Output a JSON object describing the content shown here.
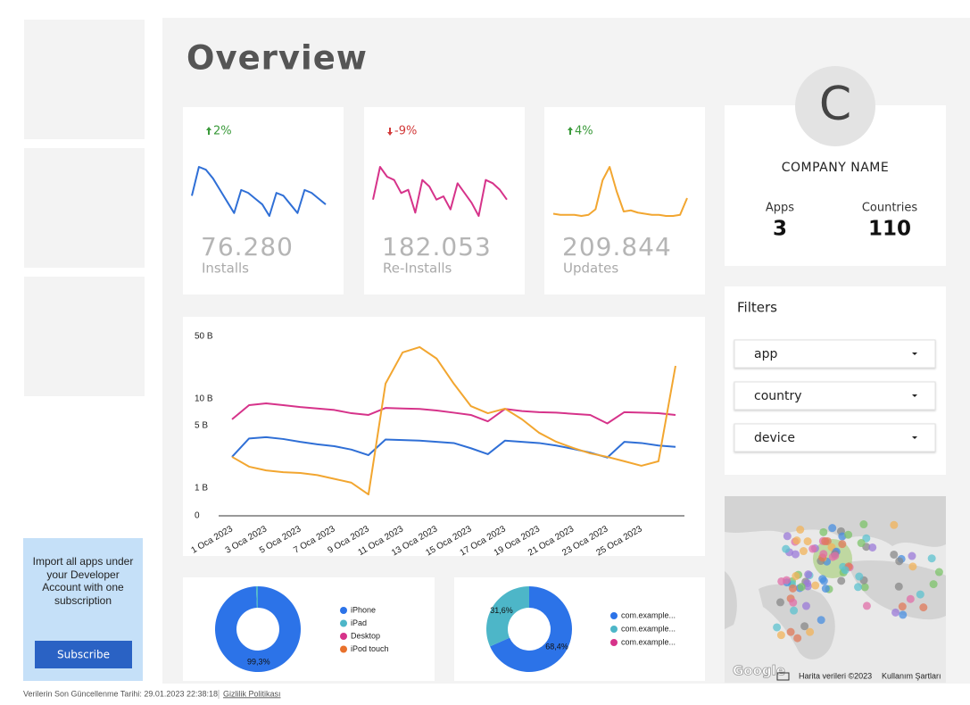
{
  "sidebar": {
    "promo": "Import all apps under your Developer Account with one subscription",
    "button": "Subscribe"
  },
  "header": {
    "title": "Overview"
  },
  "kpis": [
    {
      "change": "2%",
      "direction": "up",
      "value": "76.280",
      "label": "Installs",
      "color": "#2f6fd6",
      "trend": [
        10,
        20,
        19,
        16,
        12,
        8,
        4,
        12,
        11,
        9,
        7,
        3,
        11,
        10,
        7,
        4,
        12,
        11,
        9,
        7
      ]
    },
    {
      "change": "-9%",
      "direction": "down",
      "value": "182.053",
      "label": "Re-Installs",
      "color": "#d6338a",
      "trend": [
        12,
        22,
        19,
        18,
        14,
        15,
        8,
        18,
        16,
        12,
        13,
        9,
        17,
        14,
        11,
        7,
        18,
        17,
        15,
        12
      ]
    },
    {
      "change": "4%",
      "direction": "up",
      "value": "209.844",
      "label": "Updates",
      "color": "#f2a630",
      "trend": [
        10,
        9,
        9,
        9,
        8,
        9,
        14,
        40,
        52,
        30,
        12,
        13,
        11,
        10,
        9,
        9,
        8,
        8,
        9,
        24
      ]
    }
  ],
  "company": {
    "initial": "C",
    "name": "COMPANY NAME",
    "stats": [
      {
        "label": "Apps",
        "value": "3"
      },
      {
        "label": "Countries",
        "value": "110"
      }
    ]
  },
  "filters": {
    "title": "Filters",
    "items": [
      "app",
      "country",
      "device"
    ]
  },
  "chart_data": [
    {
      "type": "line",
      "log": true,
      "grid": false,
      "categories": [
        "1 Oca 2023",
        null,
        "3 Oca 2023",
        null,
        "5 Oca 2023",
        null,
        "7 Oca 2023",
        null,
        "9 Oca 2023",
        null,
        "11 Oca 2023",
        null,
        "13 Oca 2023",
        null,
        "15 Oca 2023",
        null,
        "17 Oca 2023",
        null,
        "19 Oca 2023",
        null,
        "21 Oca 2023",
        null,
        "23 Oca 2023",
        null,
        "25 Oca 2023",
        null,
        null
      ],
      "ylim": [
        0,
        50000
      ],
      "yticks": [
        0,
        {
          "value": 1000,
          "label": "1 B"
        },
        {
          "value": 5000,
          "label": "5 B"
        },
        {
          "value": 10000,
          "label": "10 B"
        },
        {
          "value": 50000,
          "label": "50 B"
        }
      ],
      "series": [
        {
          "color": "#2f6fd6",
          "values": [
            2240,
            3600,
            3720,
            3550,
            3300,
            3100,
            2950,
            2700,
            2340,
            3500,
            3450,
            3400,
            3300,
            3200,
            2800,
            2400,
            3400,
            3300,
            3200,
            3000,
            2750,
            2500,
            2200,
            3300,
            3200,
            3000,
            2900
          ]
        },
        {
          "color": "#d6338a",
          "values": [
            5900,
            8500,
            8900,
            8500,
            8100,
            7800,
            7500,
            6900,
            6600,
            7900,
            7800,
            7700,
            7400,
            7000,
            6600,
            5600,
            7700,
            7300,
            7100,
            7000,
            6800,
            6600,
            5300,
            7100,
            7000,
            6900,
            6600
          ]
        },
        {
          "color": "#f2a630",
          "values": [
            2240,
            1740,
            1580,
            1510,
            1480,
            1400,
            1270,
            1150,
            850,
            14800,
            33100,
            38000,
            28200,
            14800,
            8300,
            6900,
            7760,
            5900,
            4170,
            3310,
            2820,
            2450,
            2240,
            2000,
            1780,
            2000,
            23400
          ]
        }
      ]
    },
    {
      "type": "donut",
      "categories": [
        "iPhone",
        "iPad",
        "Desktop",
        "iPod touch"
      ],
      "values": [
        99.3,
        0.7,
        0,
        0
      ],
      "value_labels": [
        "99,3%",
        null,
        null,
        null
      ],
      "colors": [
        "#2c73e8",
        "#4db6c8",
        "#d6338a",
        "#e8712c"
      ]
    },
    {
      "type": "donut",
      "categories": [
        "com.example...",
        "com.example...",
        "com.example..."
      ],
      "values": [
        68.4,
        31.6,
        0
      ],
      "value_labels": [
        "68,4%",
        "31,6%",
        null
      ],
      "colors": [
        "#2c73e8",
        "#4db6c8",
        "#d6338a"
      ]
    }
  ],
  "map": {
    "logo": "Google",
    "attribution": "Harita verileri ©2023",
    "terms": "Kullanım Şartları"
  },
  "footer": {
    "updated": "Verilerin Son Güncellenme Tarihi: 29.01.2023 22:38:18",
    "privacy": "Gizlilik Politikası"
  }
}
